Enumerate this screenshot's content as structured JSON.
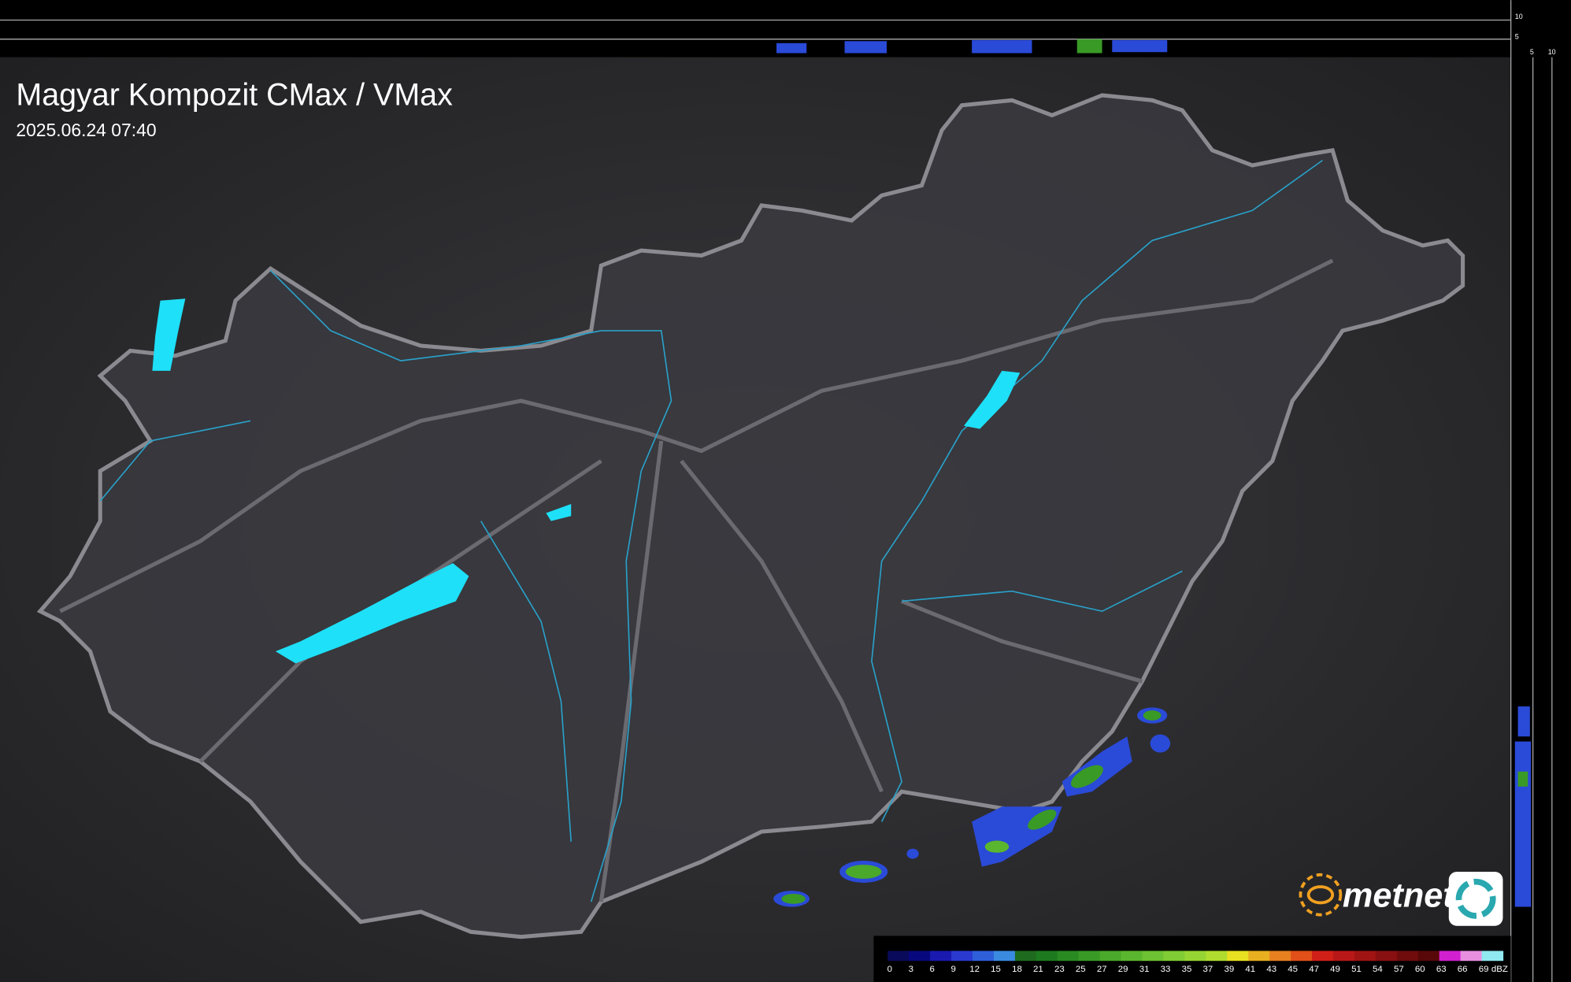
{
  "header": {
    "title": "Magyar Kompozit CMax / VMax",
    "timestamp": "2025.06.24 07:40"
  },
  "top_panel": {
    "labels": [
      "10",
      "5"
    ]
  },
  "side_panel": {
    "labels": [
      "5",
      "10"
    ]
  },
  "brand": "metnet",
  "legend": {
    "values": [
      0,
      3,
      6,
      9,
      12,
      15,
      18,
      21,
      23,
      25,
      27,
      29,
      31,
      33,
      35,
      37,
      39,
      41,
      43,
      45,
      47,
      49,
      51,
      54,
      57,
      60,
      63,
      66,
      69
    ],
    "colors": [
      "#0a0a5a",
      "#08087e",
      "#1a1ab0",
      "#2a3ad0",
      "#2e5fd8",
      "#3a8ae0",
      "#1e6a1e",
      "#1e7a1e",
      "#2a8a22",
      "#3a9a26",
      "#4aa82a",
      "#5ab62e",
      "#6cc232",
      "#80cc34",
      "#96d434",
      "#b0dc30",
      "#e8e020",
      "#e8b020",
      "#e88020",
      "#e05018",
      "#d02018",
      "#b81818",
      "#a01414",
      "#881010",
      "#700c0c",
      "#580808",
      "#d020d0",
      "#e890e0",
      "#90e8f0"
    ],
    "unit": "dBZ"
  }
}
